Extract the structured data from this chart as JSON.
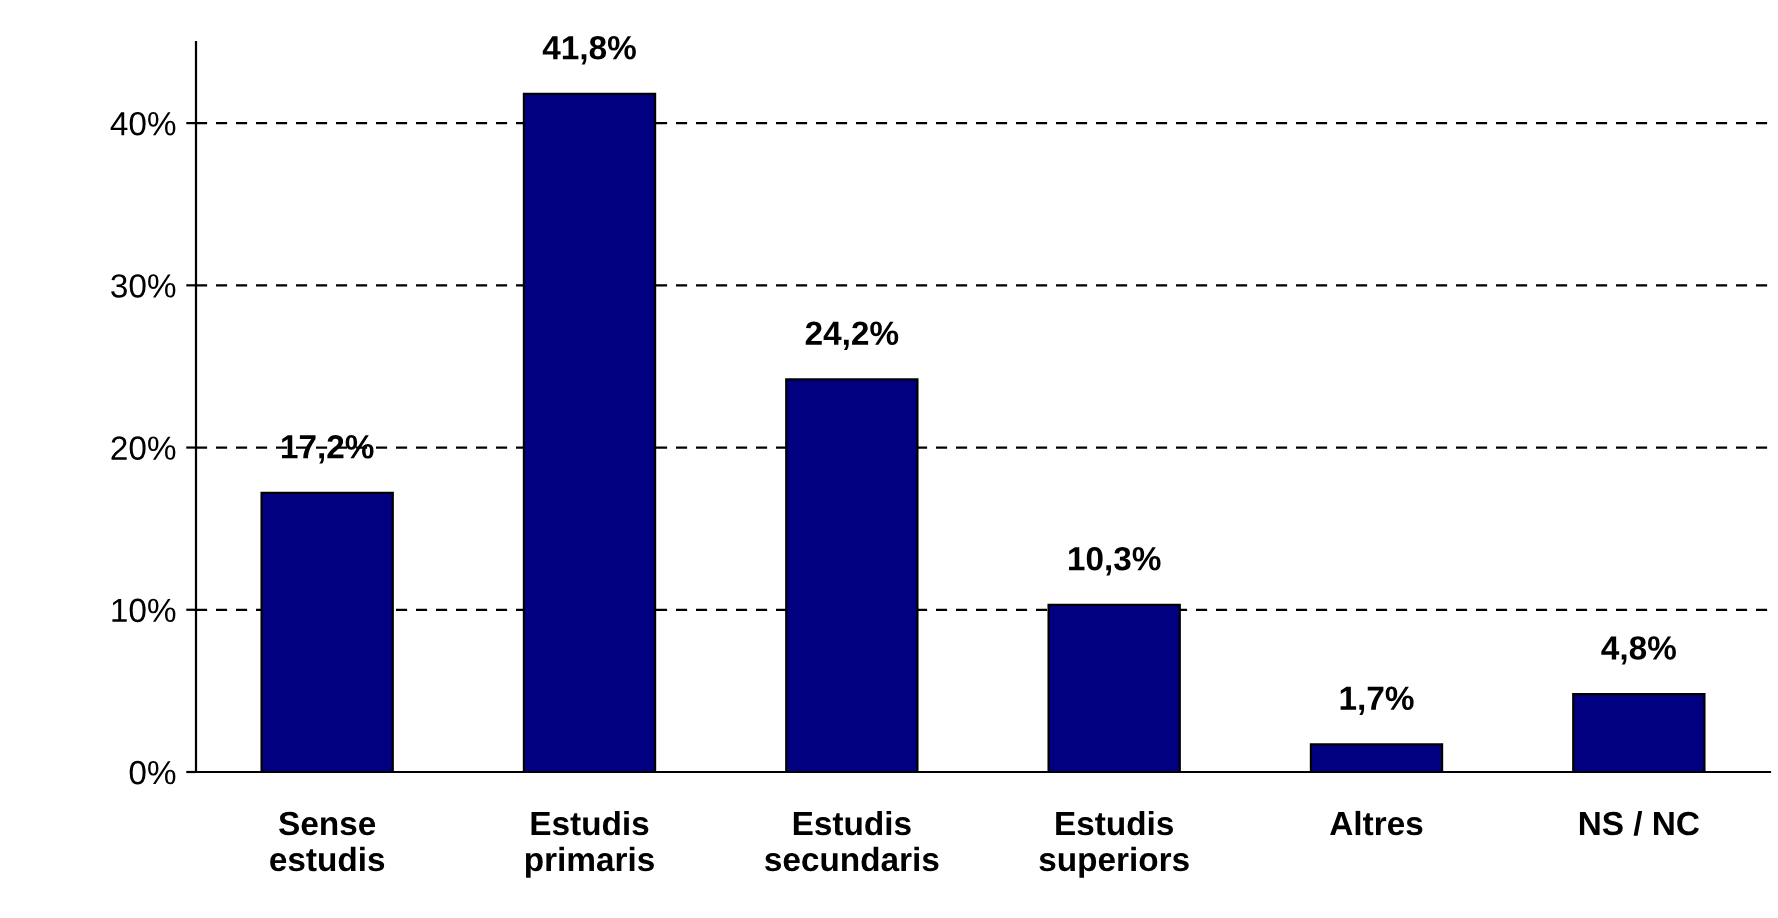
{
  "chart_data": {
    "type": "bar",
    "categories": [
      "Sense\nestudis",
      "Estudis\nprimaris",
      "Estudis\nsecundaris",
      "Estudis\nsuperiors",
      "Altres",
      "NS / NC"
    ],
    "values": [
      17.2,
      41.8,
      24.2,
      10.3,
      1.7,
      4.8
    ],
    "value_labels": [
      "17,2%",
      "41,8%",
      "24,2%",
      "10,3%",
      "1,7%",
      "4,8%"
    ],
    "color": "#000080",
    "ylim": [
      0,
      45
    ],
    "yticks": [
      {
        "value": 0,
        "label": "0%"
      },
      {
        "value": 10,
        "label": "10%"
      },
      {
        "value": 20,
        "label": "20%"
      },
      {
        "value": 30,
        "label": "30%"
      },
      {
        "value": 40,
        "label": "40%"
      }
    ],
    "grid": "y"
  }
}
